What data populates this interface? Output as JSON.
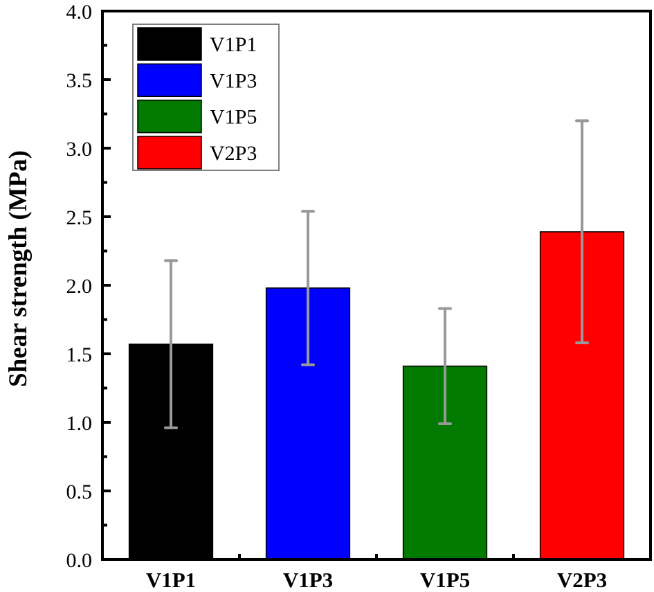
{
  "chart_data": {
    "type": "bar",
    "title": "",
    "xlabel": "",
    "ylabel": "Shear strength (MPa)",
    "categories": [
      "V1P1",
      "V1P3",
      "V1P5",
      "V2P3"
    ],
    "values": [
      1.57,
      1.98,
      1.41,
      2.39
    ],
    "error_low": [
      0.96,
      1.42,
      0.99,
      1.58
    ],
    "error_high": [
      2.18,
      2.54,
      1.83,
      3.2
    ],
    "colors": [
      "#000000",
      "#0000ff",
      "#007a00",
      "#ff0000"
    ],
    "error_bar_color": "#999999",
    "ylim": [
      0.0,
      4.0
    ],
    "yticks": [
      "0.0",
      "0.5",
      "1.0",
      "1.5",
      "2.0",
      "2.5",
      "3.0",
      "3.5",
      "4.0"
    ],
    "ytick_values": [
      0.0,
      0.5,
      1.0,
      1.5,
      2.0,
      2.5,
      3.0,
      3.5,
      4.0
    ],
    "y_minor_step": 0.25,
    "grid": false,
    "legend": {
      "position": "top-left",
      "entries": [
        "V1P1",
        "V1P3",
        "V1P5",
        "V2P3"
      ]
    }
  }
}
